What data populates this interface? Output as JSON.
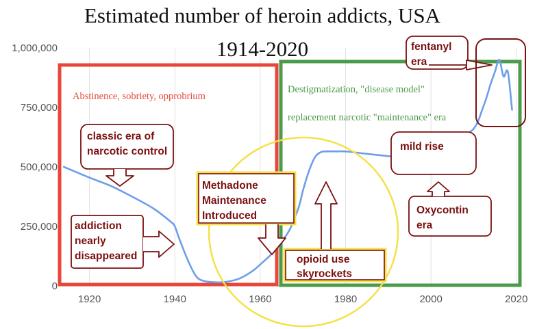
{
  "chart_data": {
    "type": "line",
    "title": "Estimated number of heroin addicts, USA",
    "subtitle": "1914-2020",
    "xlabel": "",
    "ylabel": "",
    "xlim": [
      1913,
      2021
    ],
    "ylim": [
      0,
      1000000
    ],
    "x_ticks": [
      1920,
      1940,
      1960,
      1980,
      2000,
      2020
    ],
    "y_ticks": [
      0,
      250000,
      500000,
      750000,
      1000000
    ],
    "y_tick_labels": [
      "0",
      "250,000",
      "500,000",
      "750,000",
      "1,000,000"
    ],
    "grid": "vertical",
    "legend": "none",
    "series": [
      {
        "color": "#6d9eeb",
        "x": [
          1914,
          1920,
          1925,
          1930,
          1935,
          1939,
          1940,
          1941,
          1943,
          1945,
          1947,
          1950,
          1952,
          1955,
          1958,
          1960,
          1963,
          1965,
          1967,
          1969,
          1970,
          1971,
          1972,
          1973,
          1974,
          1975,
          1978,
          1980,
          1985,
          1990,
          1995,
          2000,
          2003,
          2006,
          2009,
          2010,
          2011,
          2012,
          2013,
          2014,
          2015,
          2016,
          2017,
          2018,
          2019
        ],
        "y": [
          500000,
          455000,
          420000,
          375000,
          325000,
          270000,
          250000,
          200000,
          110000,
          40000,
          20000,
          15000,
          17000,
          30000,
          60000,
          90000,
          140000,
          185000,
          240000,
          330000,
          400000,
          460000,
          510000,
          545000,
          560000,
          565000,
          565000,
          565000,
          555000,
          545000,
          535000,
          525000,
          560000,
          610000,
          645000,
          660000,
          690000,
          740000,
          790000,
          850000,
          900000,
          950000,
          880000,
          900000,
          740000
        ]
      }
    ],
    "regions": [
      {
        "label": "Abstinence, sobriety, opprobrium",
        "color": "#e8463a"
      },
      {
        "label": "Destigmatization, \"disease model\"",
        "label2": "replacement narcotic \"maintenance\" era",
        "color": "#4b9b4b"
      }
    ],
    "annotations": [
      {
        "id": "classic-era",
        "lines": [
          "classic era of",
          "narcotic control"
        ]
      },
      {
        "id": "addiction-disappeared",
        "lines": [
          "addiction",
          "nearly",
          "disappeared"
        ]
      },
      {
        "id": "methadone",
        "lines": [
          "Methadone",
          "Maintenance",
          "Introduced"
        ]
      },
      {
        "id": "opioid-skyrockets",
        "lines": [
          "opioid use",
          "skyrockets"
        ]
      },
      {
        "id": "mild-rise",
        "lines": [
          "mild rise"
        ]
      },
      {
        "id": "oxycontin",
        "lines": [
          "Oxycontin",
          "era"
        ]
      },
      {
        "id": "fentanyl",
        "lines": [
          "fentanyl",
          "era"
        ]
      }
    ]
  }
}
